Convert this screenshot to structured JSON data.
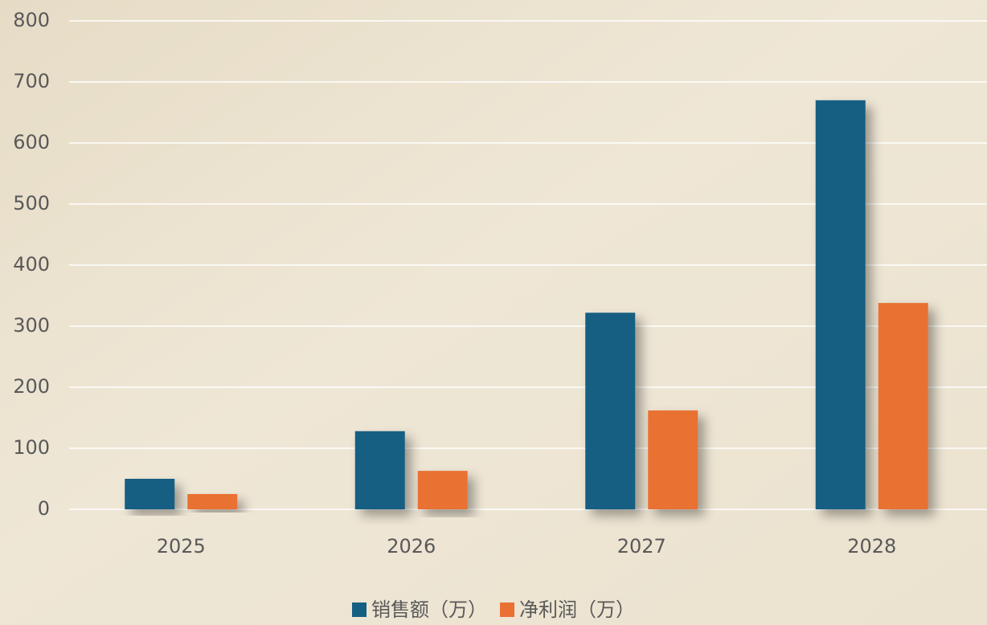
{
  "chart_data": {
    "type": "bar",
    "categories": [
      "2025",
      "2026",
      "2027",
      "2028"
    ],
    "series": [
      {
        "name": "销售额（万）",
        "color": "#155f82",
        "values": [
          50,
          128,
          322,
          670
        ]
      },
      {
        "name": "净利润（万）",
        "color": "#e97132",
        "values": [
          25,
          63,
          162,
          338
        ]
      }
    ],
    "ylim": [
      0,
      800
    ],
    "yticks": [
      0,
      100,
      200,
      300,
      400,
      500,
      600,
      700,
      800
    ],
    "grid": true,
    "legend": "bottom"
  }
}
